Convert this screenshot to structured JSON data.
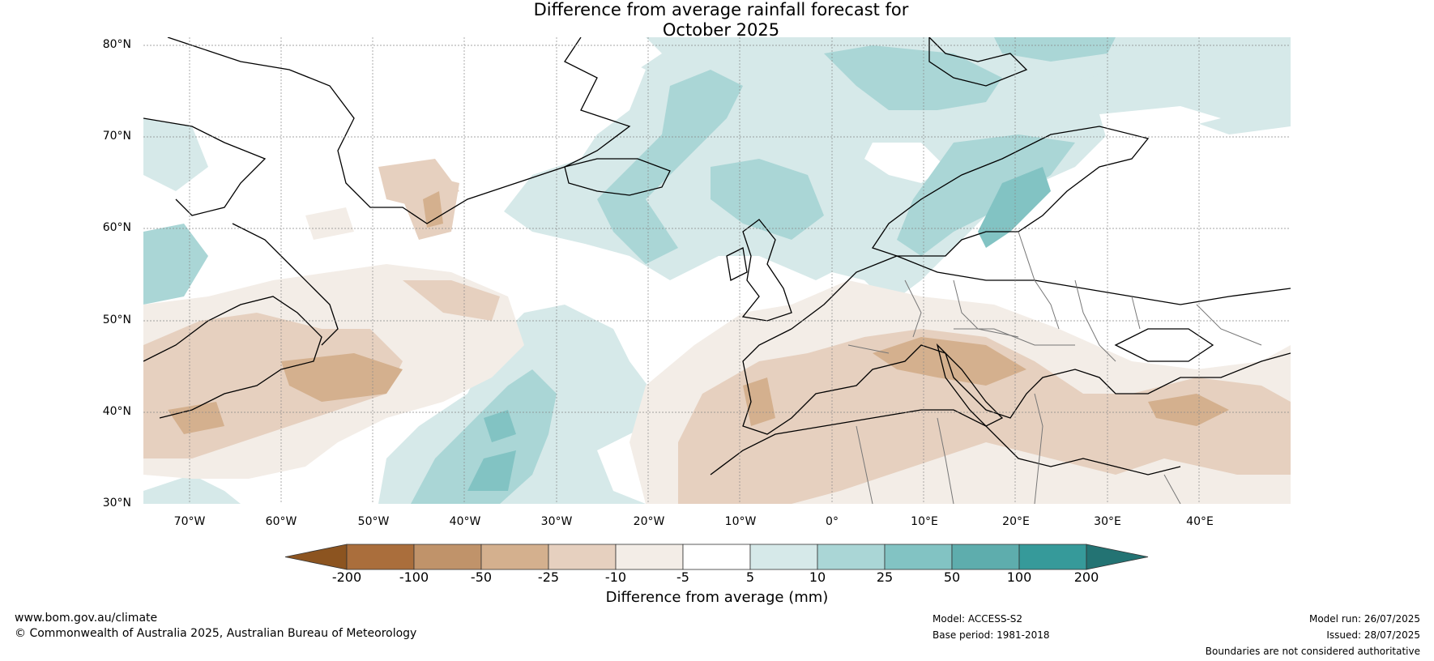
{
  "title": {
    "line1": "Difference from average rainfall forecast for",
    "line2": "October 2025"
  },
  "map": {
    "region": "North Atlantic and Europe",
    "lat_ticks": [
      "80°N",
      "70°N",
      "60°N",
      "50°N",
      "40°N",
      "30°N"
    ],
    "lon_ticks": [
      "70°W",
      "60°W",
      "50°W",
      "40°W",
      "30°W",
      "20°W",
      "10°W",
      "0°",
      "10°E",
      "20°E",
      "30°E",
      "40°E"
    ]
  },
  "colorbar": {
    "ticks": [
      "-200",
      "-100",
      "-50",
      "-25",
      "-10",
      "-5",
      "5",
      "10",
      "25",
      "50",
      "100",
      "200"
    ],
    "colors": [
      "#8c5420",
      "#aa6e3c",
      "#c0936a",
      "#d4b08e",
      "#e6d0bf",
      "#f3ede7",
      "#ffffff",
      "#d6e9e9",
      "#aad6d6",
      "#82c3c3",
      "#5eadad",
      "#369a9a",
      "#237373"
    ],
    "title": "Difference from average (mm)"
  },
  "footer": {
    "website": "www.bom.gov.au/climate",
    "copyright": "© Commonwealth of Australia 2025, Australian Bureau of Meteorology",
    "model": "Model: ACCESS-S2",
    "base_period": "Base period: 1981-2018",
    "model_run": "Model run: 26/07/2025",
    "issued": "Issued: 28/07/2025",
    "disclaimer": "Boundaries are not considered authoritative"
  }
}
